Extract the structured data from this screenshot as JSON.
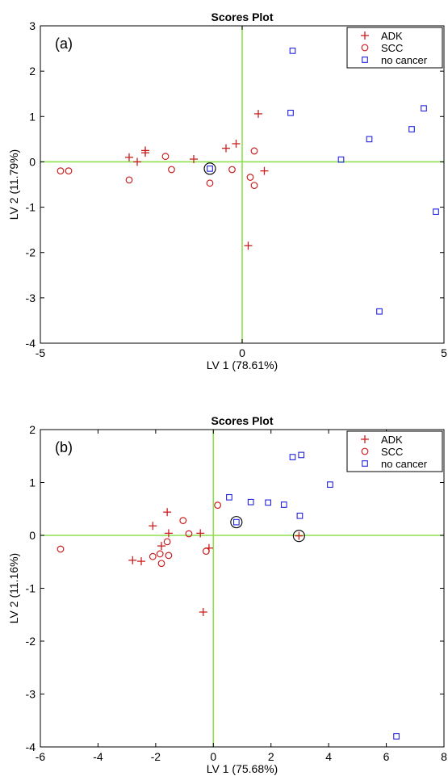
{
  "chart_data": [
    {
      "type": "scatter",
      "panel_label": "(a)",
      "title": "Scores Plot",
      "xlabel": "LV 1 (78.61%)",
      "ylabel": "LV 2 (11.79%)",
      "xlim": [
        -5,
        5
      ],
      "ylim": [
        -4,
        3
      ],
      "xticks": [
        -5,
        0,
        5
      ],
      "yticks": [
        -4,
        -3,
        -2,
        -1,
        0,
        1,
        2,
        3
      ],
      "grid": false,
      "zero_lines": true,
      "legend_position": "top-right",
      "series": [
        {
          "name": "ADK",
          "marker": "plus",
          "color": "#cc1f1f",
          "points": [
            [
              -2.8,
              0.1
            ],
            [
              -2.6,
              0.0
            ],
            [
              -2.4,
              0.2
            ],
            [
              -2.4,
              0.25
            ],
            [
              -1.2,
              0.06
            ],
            [
              -0.4,
              0.3
            ],
            [
              -0.15,
              0.4
            ],
            [
              0.4,
              1.06
            ],
            [
              0.55,
              -0.2
            ],
            [
              0.15,
              -1.85
            ]
          ]
        },
        {
          "name": "SCC",
          "marker": "circle",
          "color": "#cc1f1f",
          "points": [
            [
              -4.5,
              -0.2
            ],
            [
              -4.3,
              -0.2
            ],
            [
              -2.8,
              -0.4
            ],
            [
              -1.9,
              0.12
            ],
            [
              -1.75,
              -0.17
            ],
            [
              -0.8,
              -0.47
            ],
            [
              -0.25,
              -0.17
            ],
            [
              0.3,
              0.24
            ],
            [
              0.2,
              -0.34
            ],
            [
              0.3,
              -0.52
            ]
          ]
        },
        {
          "name": "no cancer",
          "marker": "square",
          "color": "#2222dd",
          "points": [
            [
              -0.8,
              -0.15
            ],
            [
              1.25,
              2.45
            ],
            [
              1.2,
              1.08
            ],
            [
              2.45,
              0.05
            ],
            [
              3.15,
              0.5
            ],
            [
              4.2,
              0.72
            ],
            [
              4.5,
              1.18
            ],
            [
              4.8,
              -1.1
            ],
            [
              3.4,
              -3.3
            ]
          ]
        }
      ],
      "circled_points": [
        [
          -0.8,
          -0.15
        ]
      ]
    },
    {
      "type": "scatter",
      "panel_label": "(b)",
      "title": "Scores Plot",
      "xlabel": "LV 1 (75.68%)",
      "ylabel": "LV 2 (11.16%)",
      "xlim": [
        -6,
        8
      ],
      "ylim": [
        -4,
        2
      ],
      "xticks": [
        -6,
        -4,
        -2,
        0,
        2,
        4,
        6,
        8
      ],
      "yticks": [
        -4,
        -3,
        -2,
        -1,
        0,
        1,
        2
      ],
      "grid": false,
      "zero_lines": true,
      "legend_position": "top-right",
      "series": [
        {
          "name": "ADK",
          "marker": "plus",
          "color": "#cc1f1f",
          "points": [
            [
              -2.8,
              -0.47
            ],
            [
              -2.5,
              -0.49
            ],
            [
              -2.1,
              0.18
            ],
            [
              -1.8,
              -0.2
            ],
            [
              -1.6,
              0.44
            ],
            [
              -1.55,
              0.04
            ],
            [
              -0.45,
              0.04
            ],
            [
              -0.15,
              -0.24
            ],
            [
              -0.35,
              -1.45
            ],
            [
              2.97,
              -0.01
            ]
          ]
        },
        {
          "name": "SCC",
          "marker": "circle",
          "color": "#cc1f1f",
          "points": [
            [
              -5.3,
              -0.26
            ],
            [
              -2.1,
              -0.4
            ],
            [
              -1.85,
              -0.35
            ],
            [
              -1.8,
              -0.53
            ],
            [
              -1.6,
              -0.12
            ],
            [
              -1.55,
              -0.38
            ],
            [
              -1.05,
              0.28
            ],
            [
              -0.85,
              0.03
            ],
            [
              -0.25,
              -0.3
            ],
            [
              0.15,
              0.57
            ]
          ]
        },
        {
          "name": "no cancer",
          "marker": "square",
          "color": "#2222dd",
          "points": [
            [
              0.55,
              0.72
            ],
            [
              0.8,
              0.25
            ],
            [
              1.3,
              0.63
            ],
            [
              1.9,
              0.62
            ],
            [
              2.45,
              0.58
            ],
            [
              2.75,
              1.48
            ],
            [
              3.05,
              1.52
            ],
            [
              3.0,
              0.37
            ],
            [
              4.05,
              0.96
            ],
            [
              6.35,
              -3.8
            ]
          ]
        }
      ],
      "circled_points": [
        [
          0.8,
          0.25
        ],
        [
          2.97,
          -0.01
        ]
      ]
    }
  ],
  "colors": {
    "zero_line": "#8ee04e",
    "adk": "#cc1f1f",
    "scc": "#cc1f1f",
    "no_cancer": "#2222dd",
    "axis": "#000000"
  }
}
